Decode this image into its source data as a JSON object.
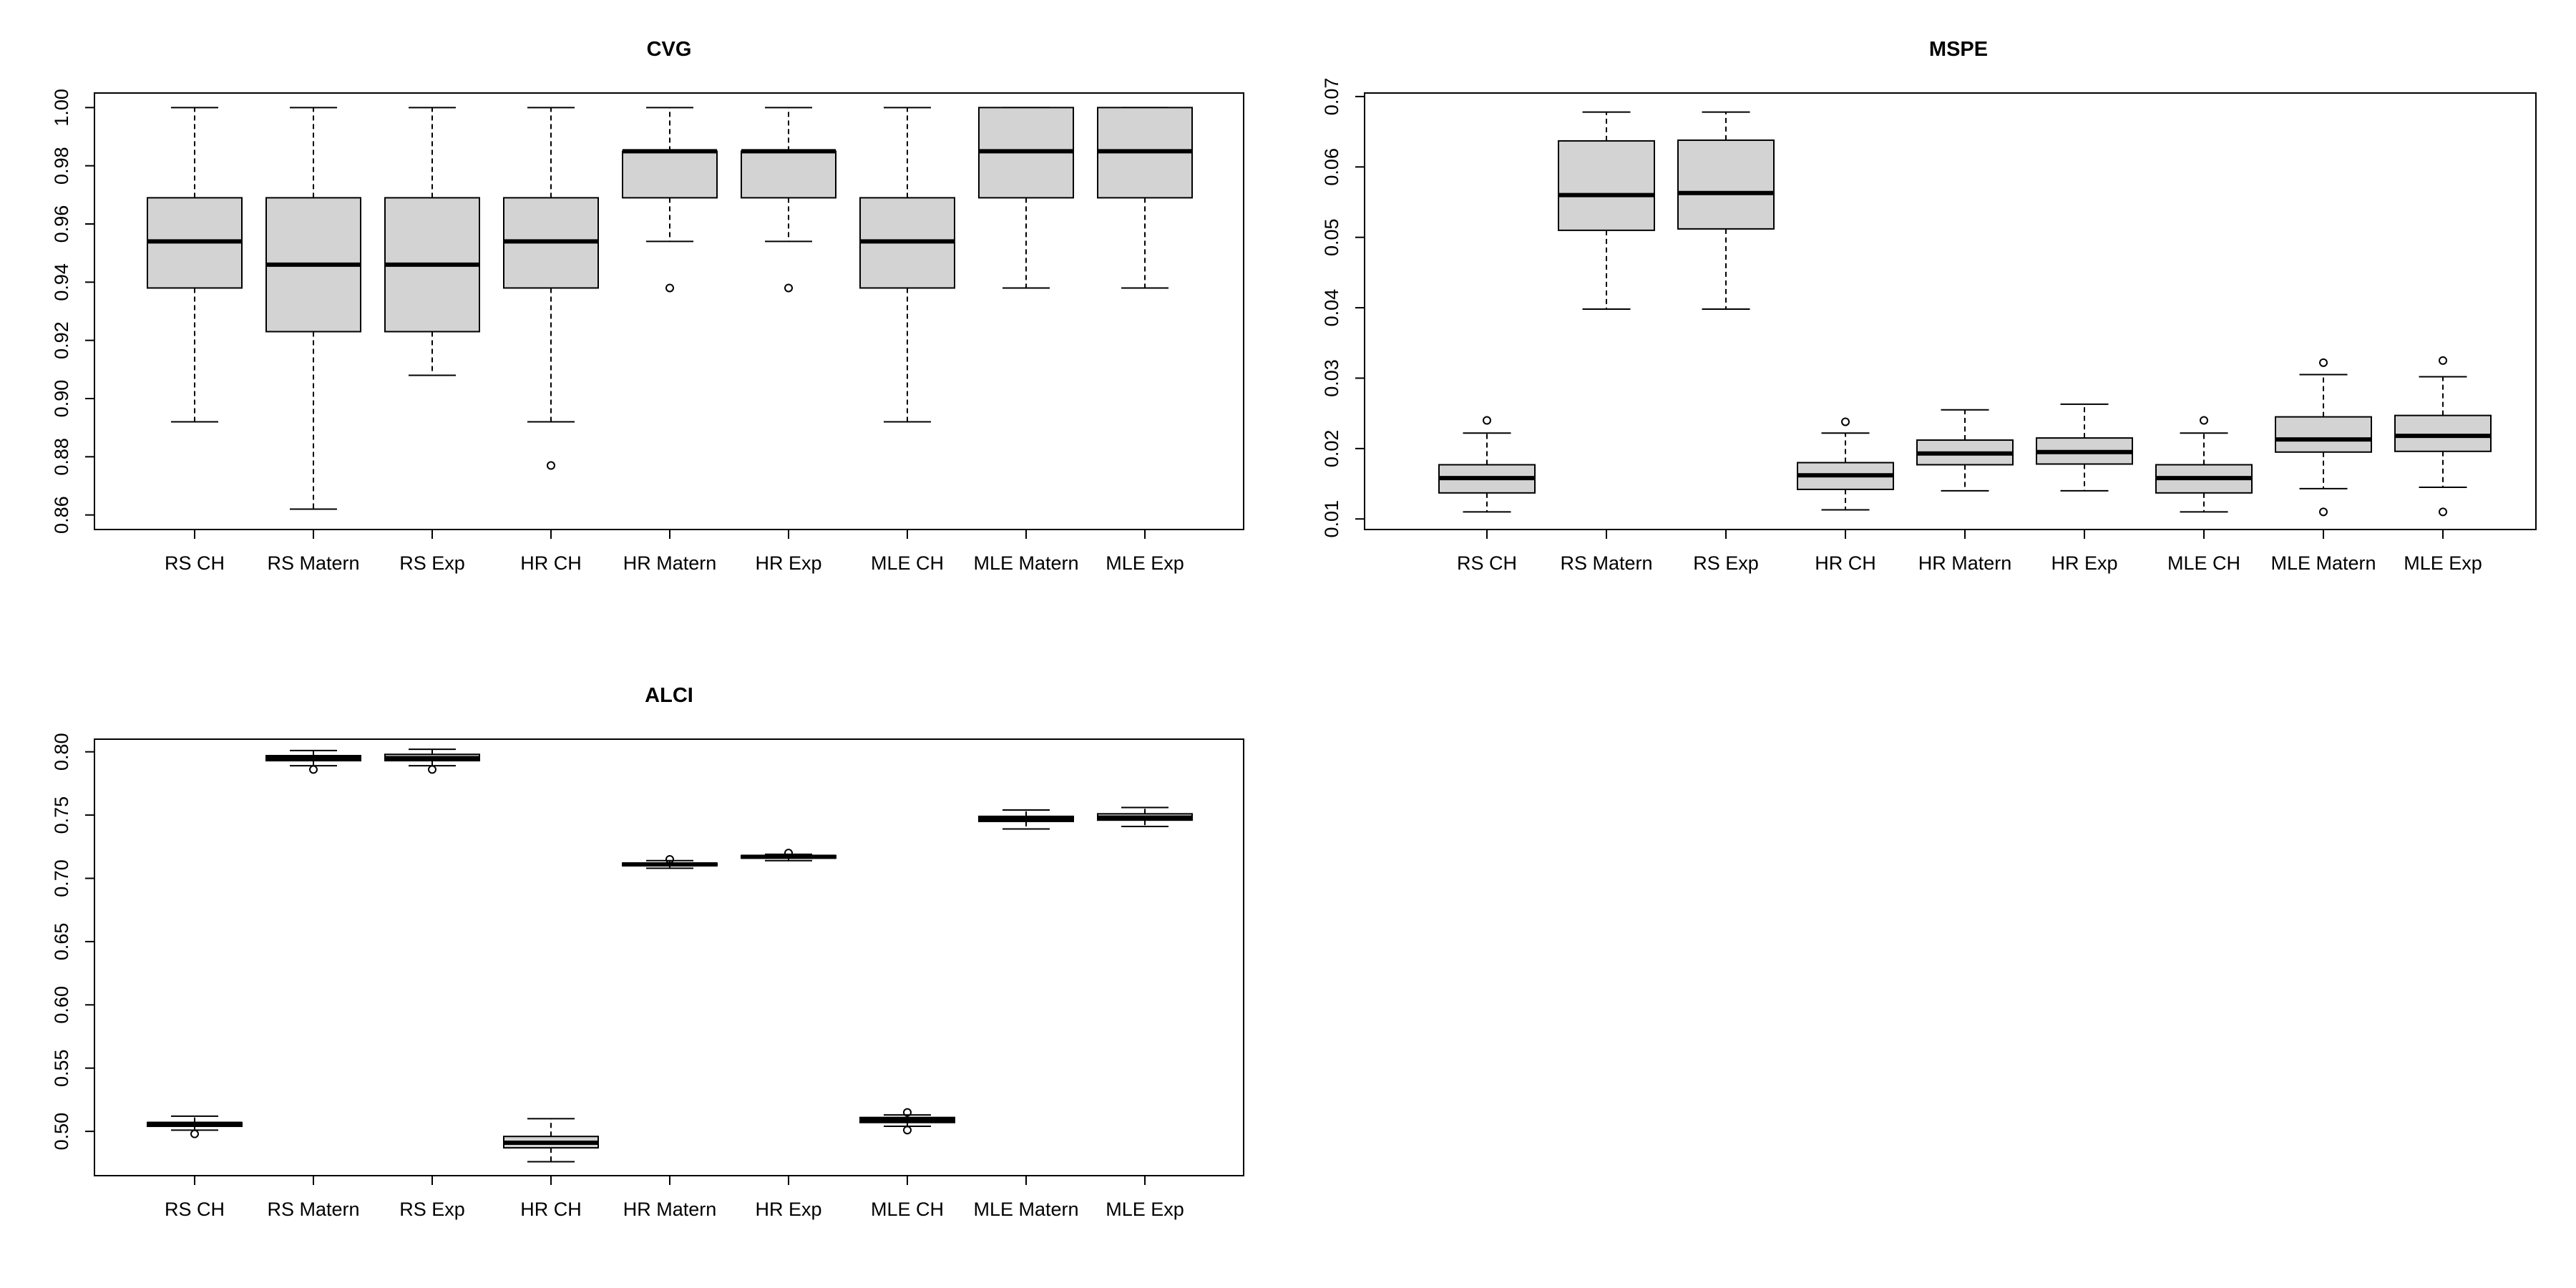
{
  "figure": {
    "style": {
      "box_fill": "#d3d3d3",
      "stroke": "#000000",
      "background": "#ffffff",
      "median_stroke": "bold",
      "whisker_style": "dashed"
    }
  },
  "chart_data": [
    {
      "type": "boxplot",
      "title": "CVG",
      "xlabel": "",
      "ylabel": "",
      "categories": [
        "RS CH",
        "RS Matern",
        "RS Exp",
        "HR CH",
        "HR Matern",
        "HR Exp",
        "MLE CH",
        "MLE Matern",
        "MLE Exp"
      ],
      "ylim": [
        0.855,
        1.005
      ],
      "yticks": [
        0.86,
        0.88,
        0.9,
        0.92,
        0.94,
        0.96,
        0.98,
        1.0
      ],
      "ytick_labels": [
        "0.86",
        "0.88",
        "0.90",
        "0.92",
        "0.94",
        "0.96",
        "0.98",
        "1.00"
      ],
      "boxes": [
        {
          "min": 0.892,
          "q1": 0.938,
          "median": 0.954,
          "q3": 0.969,
          "max": 1.0,
          "outliers": []
        },
        {
          "min": 0.862,
          "q1": 0.923,
          "median": 0.946,
          "q3": 0.969,
          "max": 1.0,
          "outliers": []
        },
        {
          "min": 0.908,
          "q1": 0.923,
          "median": 0.946,
          "q3": 0.969,
          "max": 1.0,
          "outliers": []
        },
        {
          "min": 0.892,
          "q1": 0.938,
          "median": 0.954,
          "q3": 0.969,
          "max": 1.0,
          "outliers": [
            0.877
          ]
        },
        {
          "min": 0.954,
          "q1": 0.969,
          "median": 0.985,
          "q3": 0.985,
          "max": 1.0,
          "outliers": [
            0.938
          ]
        },
        {
          "min": 0.954,
          "q1": 0.969,
          "median": 0.985,
          "q3": 0.985,
          "max": 1.0,
          "outliers": [
            0.938
          ]
        },
        {
          "min": 0.892,
          "q1": 0.938,
          "median": 0.954,
          "q3": 0.969,
          "max": 1.0,
          "outliers": []
        },
        {
          "min": 0.938,
          "q1": 0.969,
          "median": 0.985,
          "q3": 1.0,
          "max": 1.0,
          "outliers": []
        },
        {
          "min": 0.938,
          "q1": 0.969,
          "median": 0.985,
          "q3": 1.0,
          "max": 1.0,
          "outliers": []
        }
      ]
    },
    {
      "type": "boxplot",
      "title": "MSPE",
      "xlabel": "",
      "ylabel": "",
      "categories": [
        "RS CH",
        "RS Matern",
        "RS Exp",
        "HR CH",
        "HR Matern",
        "HR Exp",
        "MLE CH",
        "MLE Matern",
        "MLE Exp"
      ],
      "ylim": [
        0.0085,
        0.0705
      ],
      "yticks": [
        0.01,
        0.02,
        0.03,
        0.04,
        0.05,
        0.06,
        0.07
      ],
      "ytick_labels": [
        "0.01",
        "0.02",
        "0.03",
        "0.04",
        "0.05",
        "0.06",
        "0.07"
      ],
      "boxes": [
        {
          "min": 0.011,
          "q1": 0.0137,
          "median": 0.0158,
          "q3": 0.0177,
          "max": 0.0222,
          "outliers": [
            0.024
          ]
        },
        {
          "min": 0.0398,
          "q1": 0.051,
          "median": 0.056,
          "q3": 0.0637,
          "max": 0.0678,
          "outliers": []
        },
        {
          "min": 0.0398,
          "q1": 0.0512,
          "median": 0.0563,
          "q3": 0.0638,
          "max": 0.0678,
          "outliers": []
        },
        {
          "min": 0.0113,
          "q1": 0.0142,
          "median": 0.0162,
          "q3": 0.018,
          "max": 0.0222,
          "outliers": [
            0.0238
          ]
        },
        {
          "min": 0.014,
          "q1": 0.0177,
          "median": 0.0193,
          "q3": 0.0212,
          "max": 0.0255,
          "outliers": []
        },
        {
          "min": 0.014,
          "q1": 0.0178,
          "median": 0.0195,
          "q3": 0.0215,
          "max": 0.0263,
          "outliers": []
        },
        {
          "min": 0.011,
          "q1": 0.0137,
          "median": 0.0158,
          "q3": 0.0177,
          "max": 0.0222,
          "outliers": [
            0.024
          ]
        },
        {
          "min": 0.0143,
          "q1": 0.0195,
          "median": 0.0213,
          "q3": 0.0245,
          "max": 0.0305,
          "outliers": [
            0.011,
            0.0322
          ]
        },
        {
          "min": 0.0145,
          "q1": 0.0196,
          "median": 0.0218,
          "q3": 0.0247,
          "max": 0.0302,
          "outliers": [
            0.011,
            0.0325
          ]
        }
      ]
    },
    {
      "type": "boxplot",
      "title": "ALCI",
      "xlabel": "",
      "ylabel": "",
      "categories": [
        "RS CH",
        "RS Matern",
        "RS Exp",
        "HR CH",
        "HR Matern",
        "HR Exp",
        "MLE CH",
        "MLE Matern",
        "MLE Exp"
      ],
      "ylim": [
        0.465,
        0.81
      ],
      "yticks": [
        0.5,
        0.55,
        0.6,
        0.65,
        0.7,
        0.75,
        0.8
      ],
      "ytick_labels": [
        "0.50",
        "0.55",
        "0.60",
        "0.65",
        "0.70",
        "0.75",
        "0.80"
      ],
      "boxes": [
        {
          "min": 0.501,
          "q1": 0.504,
          "median": 0.506,
          "q3": 0.507,
          "max": 0.512,
          "outliers": [
            0.498
          ]
        },
        {
          "min": 0.789,
          "q1": 0.793,
          "median": 0.795,
          "q3": 0.797,
          "max": 0.801,
          "outliers": [
            0.786
          ]
        },
        {
          "min": 0.789,
          "q1": 0.793,
          "median": 0.795,
          "q3": 0.798,
          "max": 0.802,
          "outliers": [
            0.786
          ]
        },
        {
          "min": 0.476,
          "q1": 0.487,
          "median": 0.491,
          "q3": 0.496,
          "max": 0.51,
          "outliers": []
        },
        {
          "min": 0.708,
          "q1": 0.71,
          "median": 0.711,
          "q3": 0.712,
          "max": 0.714,
          "outliers": [
            0.715
          ]
        },
        {
          "min": 0.714,
          "q1": 0.716,
          "median": 0.717,
          "q3": 0.718,
          "max": 0.719,
          "outliers": [
            0.72
          ]
        },
        {
          "min": 0.504,
          "q1": 0.507,
          "median": 0.509,
          "q3": 0.511,
          "max": 0.513,
          "outliers": [
            0.501,
            0.515
          ]
        },
        {
          "min": 0.739,
          "q1": 0.745,
          "median": 0.747,
          "q3": 0.749,
          "max": 0.754,
          "outliers": []
        },
        {
          "min": 0.741,
          "q1": 0.746,
          "median": 0.748,
          "q3": 0.751,
          "max": 0.756,
          "outliers": []
        }
      ]
    }
  ]
}
